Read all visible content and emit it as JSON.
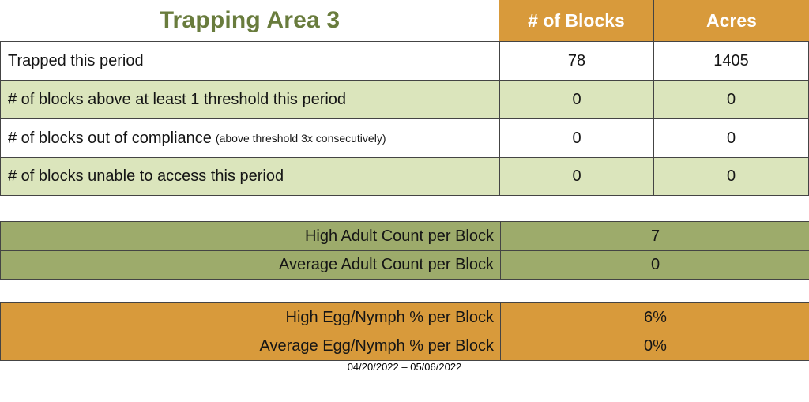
{
  "page": {
    "title": "Trapping Area 3",
    "date_range": "04/20/2022 – 05/06/2022"
  },
  "summary_table": {
    "columns": [
      "# of Blocks",
      "Acres"
    ],
    "rows": [
      {
        "label": "Trapped this period",
        "note": "",
        "blocks": "78",
        "acres": "1405"
      },
      {
        "label": "# of blocks above at least 1 threshold this period",
        "note": "",
        "blocks": "0",
        "acres": "0"
      },
      {
        "label": "# of blocks out of compliance",
        "note": "(above threshold 3x consecutively)",
        "blocks": "0",
        "acres": "0"
      },
      {
        "label": "# of blocks unable to access this period",
        "note": "",
        "blocks": "0",
        "acres": "0"
      }
    ]
  },
  "adult_table": {
    "rows": [
      {
        "label": "High Adult Count per Block",
        "value": "7"
      },
      {
        "label": "Average Adult Count per Block",
        "value": "0"
      }
    ]
  },
  "egg_table": {
    "rows": [
      {
        "label": "High Egg/Nymph % per Block",
        "value": "6%"
      },
      {
        "label": "Average Egg/Nymph % per Block",
        "value": "0%"
      }
    ]
  },
  "colors": {
    "orange": "#D89A3B",
    "light_green": "#DBE5BC",
    "olive": "#9DAB6B",
    "title_green": "#697C3D",
    "border": "#444444"
  }
}
